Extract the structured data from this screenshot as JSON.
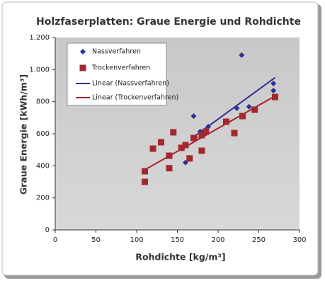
{
  "chart_data": {
    "type": "scatter",
    "title": "Holzfaserplatten: Graue Energie und Rohdichte",
    "xlabel": "Rohdichte [kg/m³]",
    "ylabel": "Graue Energie [kWh/m³]",
    "xlim": [
      0,
      300
    ],
    "xticks": [
      0,
      50,
      100,
      150,
      200,
      250,
      300
    ],
    "ylim": [
      0,
      1200
    ],
    "yticks": [
      0,
      200,
      400,
      600,
      800,
      {
        "value": 1000,
        "label": "1.000"
      },
      {
        "value": 1200,
        "label": "1.200"
      }
    ],
    "legend": "upper left",
    "grid": false,
    "series": [
      {
        "name": "Nassverfahren",
        "color": "#2e3192",
        "marker": "diamond",
        "x": [
          160,
          170,
          172,
          178,
          188,
          223,
          229,
          238,
          268,
          268
        ],
        "values": [
          420,
          710,
          578,
          613,
          644,
          759,
          1090,
          768,
          913,
          869
        ]
      },
      {
        "name": "Trockenverfahren",
        "color": "#a3282e",
        "marker": "square",
        "x": [
          110,
          110,
          120,
          130,
          140,
          140,
          145,
          155,
          160,
          165,
          170,
          180,
          180,
          185,
          210,
          220,
          230,
          245,
          270
        ],
        "values": [
          366,
          300,
          507,
          547,
          385,
          463,
          609,
          512,
          529,
          446,
          573,
          494,
          591,
          613,
          675,
          604,
          710,
          750,
          829
        ]
      },
      {
        "name": "Linear (Nassverfahren)",
        "color": "#2e3192",
        "marker": "line",
        "x": [
          170,
          270
        ],
        "values": [
          580,
          950
        ]
      },
      {
        "name": "Linear (Trockenverfahren)",
        "color": "#a3282e",
        "marker": "line",
        "x": [
          110,
          270
        ],
        "values": [
          375,
          835
        ]
      }
    ]
  }
}
